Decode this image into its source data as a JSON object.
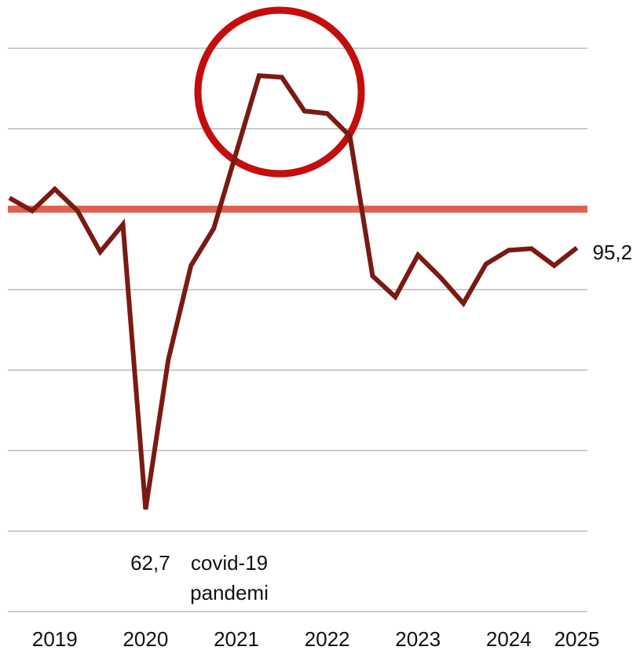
{
  "chart_data": {
    "type": "line",
    "categories": [
      null,
      null,
      "2019",
      null,
      null,
      null,
      "2020",
      null,
      null,
      null,
      "2021",
      null,
      null,
      null,
      "2022",
      null,
      null,
      null,
      "2023",
      null,
      null,
      null,
      "2024",
      null,
      null,
      "2025"
    ],
    "series": [
      {
        "color": "#7a1a12",
        "values": [
          101.4,
          99.8,
          102.5,
          99.8,
          94.7,
          98.1,
          62.7,
          81.3,
          93.0,
          97.6,
          107.1,
          116.6,
          116.4,
          112.2,
          111.9,
          109.1,
          91.7,
          89.1,
          94.3,
          91.5,
          88.3,
          93.2,
          94.9,
          95.1,
          93.0,
          95.2
        ],
        "value_labels": [
          null,
          null,
          null,
          null,
          null,
          null,
          "62,7",
          null,
          null,
          null,
          null,
          null,
          null,
          null,
          null,
          null,
          null,
          null,
          null,
          null,
          null,
          null,
          null,
          null,
          null,
          "95,2"
        ]
      }
    ],
    "annotation": [
      "covid-19",
      "pandemi"
    ],
    "reference_line": {
      "value": 100,
      "color": "#e0604f"
    },
    "ylim": [
      50,
      126
    ],
    "yticks": [
      50,
      60,
      70,
      80,
      90,
      110,
      120
    ],
    "grid": true
  }
}
